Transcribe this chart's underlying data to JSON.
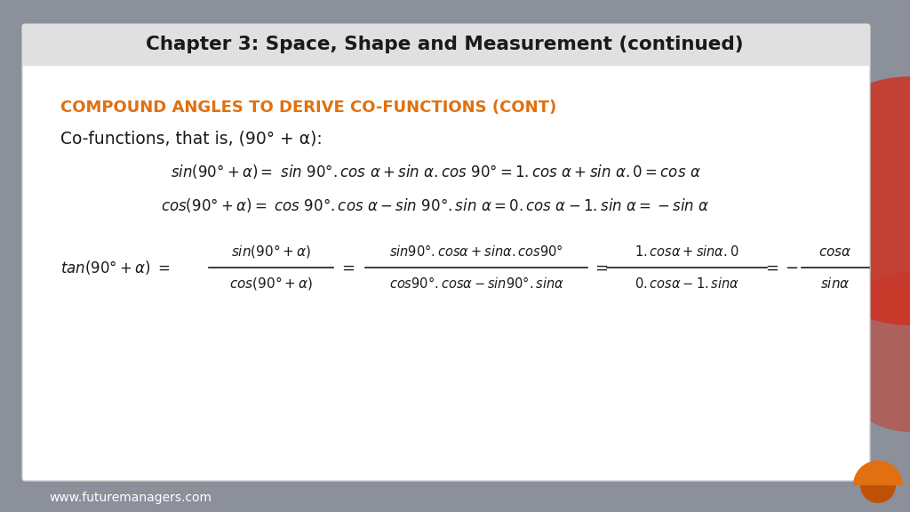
{
  "title": "Chapter 3: Space, Shape and Measurement (continued)",
  "bg_outer": "#8c909a",
  "bg_slide": "#ffffff",
  "bg_header": "#e8e8e8",
  "title_color": "#1a1a1a",
  "orange_color": "#e07010",
  "text_color": "#1a1a1a",
  "footer_text": "www.futuremanagers.com",
  "footer_color": "#ffffff",
  "section_title": "COMPOUND ANGLES TO DERIVE CO-FUNCTIONS (CONT)",
  "cofunctions_label": "Co-functions, that is, (90° + α):"
}
